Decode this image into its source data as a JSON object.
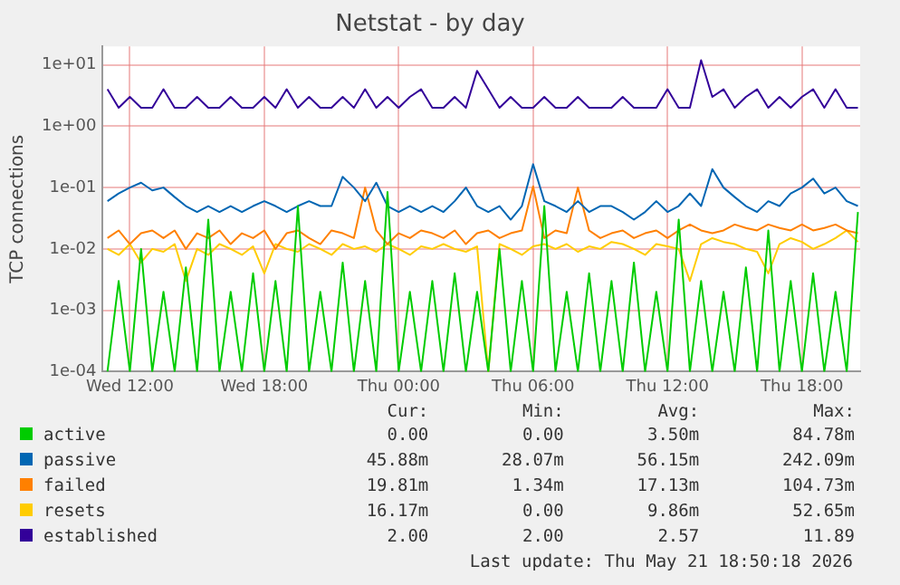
{
  "chart_data": {
    "type": "line",
    "title": "Netstat - by day",
    "ylabel": "TCP connections",
    "log": "y",
    "grid": true,
    "legend": "bottom",
    "marker": "none",
    "line_style": "solid",
    "x": [
      "2026-05-20T11:00",
      "2026-05-20T11:30",
      "2026-05-20T12:00",
      "2026-05-20T12:30",
      "2026-05-20T13:00",
      "2026-05-20T13:30",
      "2026-05-20T14:00",
      "2026-05-20T14:30",
      "2026-05-20T15:00",
      "2026-05-20T15:30",
      "2026-05-20T16:00",
      "2026-05-20T16:30",
      "2026-05-20T17:00",
      "2026-05-20T17:30",
      "2026-05-20T18:00",
      "2026-05-20T18:30",
      "2026-05-20T19:00",
      "2026-05-20T19:30",
      "2026-05-20T20:00",
      "2026-05-20T20:30",
      "2026-05-20T21:00",
      "2026-05-20T21:30",
      "2026-05-20T22:00",
      "2026-05-20T22:30",
      "2026-05-20T23:00",
      "2026-05-20T23:30",
      "2026-05-21T00:00",
      "2026-05-21T00:30",
      "2026-05-21T01:00",
      "2026-05-21T01:30",
      "2026-05-21T02:00",
      "2026-05-21T02:30",
      "2026-05-21T03:00",
      "2026-05-21T03:30",
      "2026-05-21T04:00",
      "2026-05-21T04:30",
      "2026-05-21T05:00",
      "2026-05-21T05:30",
      "2026-05-21T06:00",
      "2026-05-21T06:30",
      "2026-05-21T07:00",
      "2026-05-21T07:30",
      "2026-05-21T08:00",
      "2026-05-21T08:30",
      "2026-05-21T09:00",
      "2026-05-21T09:30",
      "2026-05-21T10:00",
      "2026-05-21T10:30",
      "2026-05-21T11:00",
      "2026-05-21T11:30",
      "2026-05-21T12:00",
      "2026-05-21T12:30",
      "2026-05-21T13:00",
      "2026-05-21T13:30",
      "2026-05-21T14:00",
      "2026-05-21T14:30",
      "2026-05-21T15:00",
      "2026-05-21T15:30",
      "2026-05-21T16:00",
      "2026-05-21T16:30",
      "2026-05-21T17:00",
      "2026-05-21T17:30",
      "2026-05-21T18:00",
      "2026-05-21T18:30",
      "2026-05-21T19:00",
      "2026-05-21T19:30",
      "2026-05-21T20:00",
      "2026-05-21T20:30"
    ],
    "xlim": [
      "2026-05-20T10:45",
      "2026-05-21T20:36"
    ],
    "xticks": [
      {
        "value": "2026-05-20T12:00",
        "label": "Wed 12:00"
      },
      {
        "value": "2026-05-20T18:00",
        "label": "Wed 18:00"
      },
      {
        "value": "2026-05-21T00:00",
        "label": "Thu 00:00"
      },
      {
        "value": "2026-05-21T06:00",
        "label": "Thu 06:00"
      },
      {
        "value": "2026-05-21T12:00",
        "label": "Thu 12:00"
      },
      {
        "value": "2026-05-21T18:00",
        "label": "Thu 18:00"
      }
    ],
    "ylim": [
      0.0001,
      20
    ],
    "yticks": [
      {
        "value": 0.0001,
        "label": "1e-04"
      },
      {
        "value": 0.001,
        "label": "1e-03"
      },
      {
        "value": 0.01,
        "label": "1e-02"
      },
      {
        "value": 0.1,
        "label": "1e-01"
      },
      {
        "value": 1,
        "label": "1e+00"
      },
      {
        "value": 10,
        "label": "1e+01"
      }
    ],
    "series": [
      {
        "name": "active",
        "color": "#00cc00",
        "values": [
          0.0001,
          0.003,
          0.0001,
          0.01,
          0.0001,
          0.002,
          0.0001,
          0.005,
          0.0001,
          0.03,
          0.0001,
          0.002,
          0.0001,
          0.004,
          0.0001,
          0.003,
          0.0001,
          0.05,
          0.0001,
          0.002,
          0.0001,
          0.006,
          0.0001,
          0.003,
          0.0001,
          0.0848,
          0.0001,
          0.002,
          0.0001,
          0.003,
          0.0001,
          0.004,
          0.0001,
          0.002,
          0.0001,
          0.01,
          0.0001,
          0.003,
          0.0001,
          0.05,
          0.0001,
          0.002,
          0.0001,
          0.004,
          0.0001,
          0.003,
          0.0001,
          0.006,
          0.0001,
          0.002,
          0.0001,
          0.03,
          0.0001,
          0.003,
          0.0001,
          0.002,
          0.0001,
          0.005,
          0.0001,
          0.02,
          0.0001,
          0.003,
          0.0001,
          0.004,
          0.0001,
          0.002,
          0.0001,
          0.04
        ]
      },
      {
        "name": "passive",
        "color": "#0066b3",
        "values": [
          0.06,
          0.08,
          0.1,
          0.12,
          0.09,
          0.1,
          0.07,
          0.05,
          0.04,
          0.05,
          0.04,
          0.05,
          0.04,
          0.05,
          0.06,
          0.05,
          0.04,
          0.05,
          0.06,
          0.05,
          0.05,
          0.15,
          0.1,
          0.06,
          0.12,
          0.05,
          0.04,
          0.05,
          0.04,
          0.05,
          0.04,
          0.06,
          0.1,
          0.05,
          0.04,
          0.05,
          0.03,
          0.05,
          0.24,
          0.06,
          0.05,
          0.04,
          0.06,
          0.04,
          0.05,
          0.05,
          0.04,
          0.03,
          0.04,
          0.06,
          0.04,
          0.05,
          0.08,
          0.05,
          0.2,
          0.1,
          0.07,
          0.05,
          0.04,
          0.06,
          0.05,
          0.08,
          0.1,
          0.14,
          0.08,
          0.1,
          0.06,
          0.05
        ]
      },
      {
        "name": "failed",
        "color": "#ff8000",
        "values": [
          0.015,
          0.02,
          0.012,
          0.018,
          0.02,
          0.015,
          0.02,
          0.01,
          0.018,
          0.015,
          0.02,
          0.012,
          0.018,
          0.015,
          0.02,
          0.01,
          0.018,
          0.02,
          0.015,
          0.012,
          0.02,
          0.018,
          0.015,
          0.1,
          0.02,
          0.012,
          0.018,
          0.015,
          0.02,
          0.018,
          0.015,
          0.02,
          0.012,
          0.018,
          0.02,
          0.015,
          0.018,
          0.02,
          0.1047,
          0.015,
          0.02,
          0.018,
          0.1,
          0.02,
          0.015,
          0.018,
          0.02,
          0.015,
          0.018,
          0.02,
          0.015,
          0.02,
          0.025,
          0.02,
          0.018,
          0.02,
          0.025,
          0.022,
          0.02,
          0.025,
          0.022,
          0.02,
          0.025,
          0.02,
          0.022,
          0.025,
          0.02,
          0.018
        ]
      },
      {
        "name": "resets",
        "color": "#ffcc00",
        "values": [
          0.01,
          0.008,
          0.012,
          0.006,
          0.01,
          0.009,
          0.012,
          0.003,
          0.01,
          0.008,
          0.012,
          0.01,
          0.008,
          0.011,
          0.004,
          0.012,
          0.01,
          0.009,
          0.012,
          0.01,
          0.008,
          0.012,
          0.01,
          0.011,
          0.009,
          0.012,
          0.01,
          0.008,
          0.011,
          0.01,
          0.012,
          0.01,
          0.009,
          0.011,
          0.0001,
          0.012,
          0.01,
          0.008,
          0.011,
          0.012,
          0.01,
          0.012,
          0.009,
          0.011,
          0.01,
          0.013,
          0.012,
          0.01,
          0.008,
          0.012,
          0.011,
          0.01,
          0.003,
          0.012,
          0.015,
          0.013,
          0.012,
          0.01,
          0.009,
          0.004,
          0.012,
          0.015,
          0.013,
          0.01,
          0.012,
          0.015,
          0.02,
          0.013
        ]
      },
      {
        "name": "established",
        "color": "#330099",
        "values": [
          4,
          2,
          3,
          2,
          2,
          4,
          2,
          2,
          3,
          2,
          2,
          3,
          2,
          2,
          3,
          2,
          4,
          2,
          3,
          2,
          2,
          3,
          2,
          4,
          2,
          3,
          2,
          3,
          4,
          2,
          2,
          3,
          2,
          8,
          4,
          2,
          3,
          2,
          2,
          3,
          2,
          2,
          3,
          2,
          2,
          2,
          3,
          2,
          2,
          2,
          4,
          2,
          2,
          11.89,
          3,
          4,
          2,
          3,
          4,
          2,
          3,
          2,
          3,
          4,
          2,
          4,
          2,
          2
        ]
      }
    ],
    "annotations": [
      "Cur:",
      "Min:",
      "Avg:",
      "Max:",
      "0.00",
      "0.00",
      "3.50m",
      "84.78m",
      "45.88m",
      "28.07m",
      "56.15m",
      "242.09m",
      "19.81m",
      "1.34m",
      "17.13m",
      "104.73m",
      "16.17m",
      "0.00",
      "9.86m",
      "52.65m",
      "2.00",
      "2.00",
      "2.57",
      "11.89",
      "Last update: Thu May 21 18:50:18 2026"
    ]
  }
}
